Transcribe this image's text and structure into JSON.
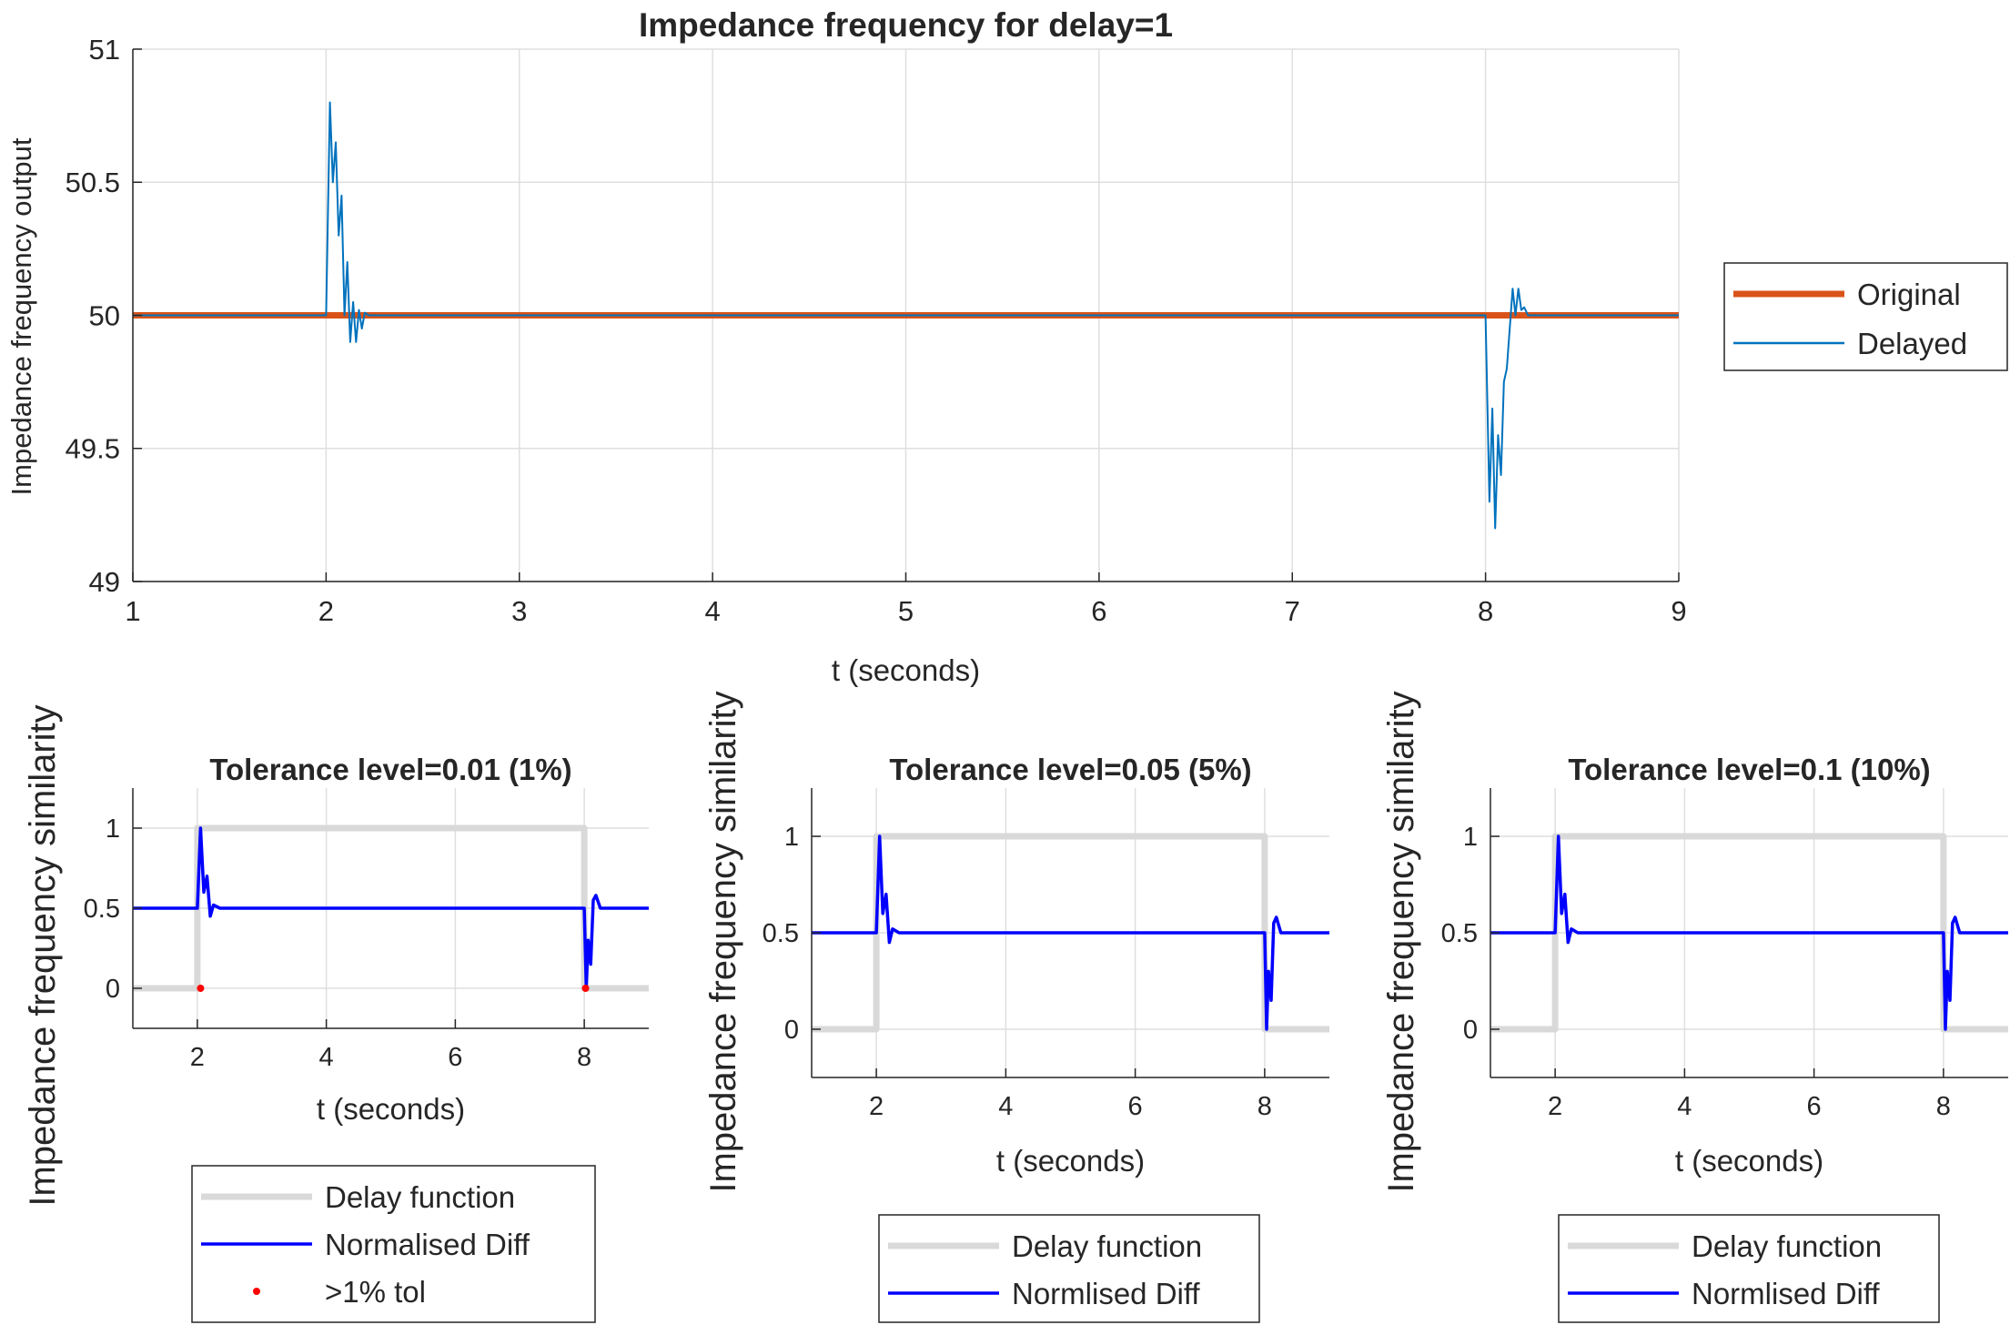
{
  "colors": {
    "original": "#D95319",
    "delayed": "#0072BD",
    "delay_function": "#D9D9D9",
    "normalised_diff": "#0000FF",
    "tol_marker": "#FF0000",
    "grid": "#DFDFDF",
    "axis": "#262626"
  },
  "chart_data": [
    {
      "type": "line",
      "title": "Impedance frequency for delay=1",
      "xlabel": "t (seconds)",
      "ylabel": "Impedance frequency output",
      "xlim": [
        1,
        9
      ],
      "ylim": [
        49,
        51
      ],
      "xticks": [
        1,
        2,
        3,
        4,
        5,
        6,
        7,
        8,
        9
      ],
      "yticks": [
        49,
        49.5,
        50,
        50.5,
        51
      ],
      "ytick_labels": [
        "49",
        "49.5",
        "50",
        "50.5",
        "51"
      ],
      "grid": true,
      "legend_position": "outside-right",
      "series": [
        {
          "name": "Original",
          "color": "#D95319",
          "x": [
            1,
            9
          ],
          "y": [
            50,
            50
          ]
        },
        {
          "name": "Delayed",
          "color": "#0072BD",
          "x": [
            1,
            2.0,
            2.02,
            2.035,
            2.05,
            2.065,
            2.08,
            2.095,
            2.11,
            2.125,
            2.14,
            2.155,
            2.17,
            2.185,
            2.2,
            2.22,
            8.0,
            8.02,
            8.035,
            8.05,
            8.065,
            8.08,
            8.095,
            8.11,
            8.125,
            8.14,
            8.155,
            8.17,
            8.185,
            8.2,
            8.22,
            9
          ],
          "y": [
            50,
            50,
            50.8,
            50.5,
            50.65,
            50.3,
            50.45,
            50.0,
            50.2,
            49.9,
            50.05,
            49.9,
            50.02,
            49.95,
            50.01,
            50,
            50,
            49.3,
            49.65,
            49.2,
            49.55,
            49.4,
            49.75,
            49.8,
            49.95,
            50.1,
            50.0,
            50.1,
            50.02,
            50.03,
            50.0,
            50
          ]
        }
      ]
    },
    {
      "type": "line",
      "title": "Tolerance level=0.01 (1%)",
      "xlabel": "t (seconds)",
      "ylabel": "Impedance frequency similarity",
      "xlim": [
        1,
        9
      ],
      "ylim": [
        -0.25,
        1.25
      ],
      "xticks": [
        2,
        4,
        6,
        8
      ],
      "yticks": [
        0,
        0.5,
        1
      ],
      "ytick_labels": [
        "0",
        "0.5",
        "1"
      ],
      "grid": true,
      "legend_position": "below",
      "series": [
        {
          "name": "Delay function",
          "color": "#D9D9D9",
          "x": [
            1,
            2,
            2,
            8,
            8,
            9
          ],
          "y": [
            0,
            0,
            1,
            1,
            0,
            0
          ]
        },
        {
          "name": "Normalised Diff",
          "color": "#0000FF",
          "x": [
            1,
            2.0,
            2.05,
            2.1,
            2.15,
            2.2,
            2.25,
            2.35,
            8.0,
            8.03,
            8.06,
            8.1,
            8.14,
            8.18,
            8.25,
            8.35,
            9
          ],
          "y": [
            0.5,
            0.5,
            1.0,
            0.6,
            0.7,
            0.45,
            0.52,
            0.5,
            0.5,
            0.0,
            0.3,
            0.15,
            0.55,
            0.58,
            0.5,
            0.5,
            0.5
          ]
        },
        {
          "name": ">1% tol",
          "color": "#FF0000",
          "x": [
            2.05,
            8.02
          ],
          "y": [
            0,
            0
          ]
        }
      ]
    },
    {
      "type": "line",
      "title": "Tolerance level=0.05 (5%)",
      "xlabel": "t (seconds)",
      "ylabel": "Impedance frequency similarity",
      "xlim": [
        1,
        9
      ],
      "ylim": [
        -0.25,
        1.25
      ],
      "xticks": [
        2,
        4,
        6,
        8
      ],
      "yticks": [
        0,
        0.5,
        1
      ],
      "ytick_labels": [
        "0",
        "0.5",
        "1"
      ],
      "grid": true,
      "legend_position": "below",
      "series": [
        {
          "name": "Delay function",
          "color": "#D9D9D9",
          "x": [
            1,
            2,
            2,
            8,
            8,
            9
          ],
          "y": [
            0,
            0,
            1,
            1,
            0,
            0
          ]
        },
        {
          "name": "Normlised Diff",
          "color": "#0000FF",
          "x": [
            1,
            2.0,
            2.05,
            2.1,
            2.15,
            2.2,
            2.25,
            2.35,
            8.0,
            8.03,
            8.06,
            8.1,
            8.14,
            8.18,
            8.25,
            8.35,
            9
          ],
          "y": [
            0.5,
            0.5,
            1.0,
            0.6,
            0.7,
            0.45,
            0.52,
            0.5,
            0.5,
            0.0,
            0.3,
            0.15,
            0.55,
            0.58,
            0.5,
            0.5,
            0.5
          ]
        }
      ]
    },
    {
      "type": "line",
      "title": "Tolerance level=0.1 (10%)",
      "xlabel": "t (seconds)",
      "ylabel": "Impedance frequency similarity",
      "xlim": [
        1,
        9
      ],
      "ylim": [
        -0.25,
        1.25
      ],
      "xticks": [
        2,
        4,
        6,
        8
      ],
      "yticks": [
        0,
        0.5,
        1
      ],
      "ytick_labels": [
        "0",
        "0.5",
        "1"
      ],
      "grid": true,
      "legend_position": "below",
      "series": [
        {
          "name": "Delay function",
          "color": "#D9D9D9",
          "x": [
            1,
            2,
            2,
            8,
            8,
            9
          ],
          "y": [
            0,
            0,
            1,
            1,
            0,
            0
          ]
        },
        {
          "name": "Normlised Diff",
          "color": "#0000FF",
          "x": [
            1,
            2.0,
            2.05,
            2.1,
            2.15,
            2.2,
            2.25,
            2.35,
            8.0,
            8.03,
            8.06,
            8.1,
            8.14,
            8.18,
            8.25,
            8.35,
            9
          ],
          "y": [
            0.5,
            0.5,
            1.0,
            0.6,
            0.7,
            0.45,
            0.52,
            0.5,
            0.5,
            0.0,
            0.3,
            0.15,
            0.55,
            0.58,
            0.5,
            0.5,
            0.5
          ]
        }
      ]
    }
  ]
}
